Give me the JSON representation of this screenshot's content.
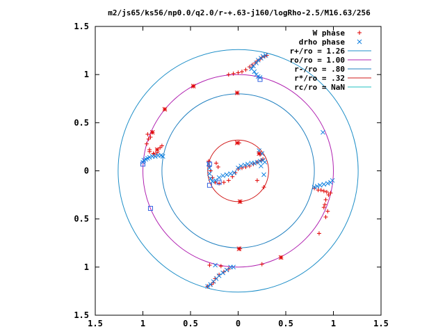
{
  "chart_data": {
    "type": "scatter",
    "title": "m2/js65/ks56/np0.0/q2.0/r-+.63-j160/logRho-2.5/M16.63/256",
    "xlabel": "",
    "ylabel": "",
    "xlim": [
      -1.5,
      1.5
    ],
    "ylim": [
      -1.5,
      1.5
    ],
    "grid": false,
    "legend_position": "top-right",
    "x_ticks": [
      {
        "value": -1.5,
        "label": "1.5"
      },
      {
        "value": -1.0,
        "label": "1"
      },
      {
        "value": -0.5,
        "label": "0.5"
      },
      {
        "value": 0.0,
        "label": "0"
      },
      {
        "value": 0.5,
        "label": "0.5"
      },
      {
        "value": 1.0,
        "label": "1"
      },
      {
        "value": 1.5,
        "label": "1.5"
      }
    ],
    "y_ticks": [
      {
        "value": 1.5,
        "label": "1.5"
      },
      {
        "value": 1.0,
        "label": "1"
      },
      {
        "value": 0.5,
        "label": "0.5"
      },
      {
        "value": 0.0,
        "label": "0"
      },
      {
        "value": -0.5,
        "label": "0.5"
      },
      {
        "value": -1.0,
        "label": "1"
      },
      {
        "value": -1.5,
        "label": "1.5"
      }
    ],
    "circles": [
      {
        "name": "r+/ro = 1.26",
        "radius": 1.26,
        "color": "#1f8fc8"
      },
      {
        "name": "ro/ro = 1.00",
        "radius": 1.0,
        "color": "#b020b0"
      },
      {
        "name": "r-/ro = .80",
        "radius": 0.8,
        "color": "#2080c0"
      },
      {
        "name": "r*/ro = .32",
        "radius": 0.32,
        "color": "#d01818"
      },
      {
        "name": "rc/ro = NaN",
        "radius": null,
        "color": "#20c0c0"
      }
    ],
    "series": [
      {
        "name": "W phase",
        "marker": "plus",
        "color": "#e00000",
        "points": [
          [
            -0.89,
            0.18
          ],
          [
            -0.93,
            0.22
          ],
          [
            -0.96,
            0.28
          ],
          [
            -0.94,
            0.33
          ],
          [
            -0.92,
            0.35
          ],
          [
            -0.95,
            0.38
          ],
          [
            -0.9,
            0.4
          ],
          [
            -0.93,
            0.2
          ],
          [
            -0.88,
            0.17
          ],
          [
            -0.85,
            0.19
          ],
          [
            -0.82,
            0.24
          ],
          [
            -0.8,
            0.26
          ],
          [
            -0.77,
            0.64
          ],
          [
            -0.47,
            0.88
          ],
          [
            -0.1,
            1.0
          ],
          [
            -0.05,
            1.01
          ],
          [
            0.0,
            1.02
          ],
          [
            0.04,
            1.03
          ],
          [
            0.08,
            1.05
          ],
          [
            0.12,
            1.08
          ],
          [
            0.15,
            1.1
          ],
          [
            0.18,
            1.12
          ],
          [
            0.2,
            1.14
          ],
          [
            0.23,
            1.16
          ],
          [
            0.25,
            1.18
          ],
          [
            0.28,
            1.19
          ],
          [
            0.3,
            1.2
          ],
          [
            -0.01,
            0.81
          ],
          [
            -0.31,
            0.1
          ],
          [
            -0.3,
            0.05
          ],
          [
            -0.29,
            0.0
          ],
          [
            -0.27,
            -0.07
          ],
          [
            -0.24,
            -0.12
          ],
          [
            -0.2,
            -0.13
          ],
          [
            -0.15,
            -0.12
          ],
          [
            -0.1,
            -0.1
          ],
          [
            -0.06,
            -0.06
          ],
          [
            -0.03,
            -0.02
          ],
          [
            0.0,
            0.02
          ],
          [
            0.04,
            0.03
          ],
          [
            0.08,
            0.04
          ],
          [
            0.12,
            0.05
          ],
          [
            0.16,
            0.07
          ],
          [
            0.2,
            0.09
          ],
          [
            0.24,
            0.11
          ],
          [
            0.26,
            0.12
          ],
          [
            -0.23,
            0.08
          ],
          [
            -0.21,
            0.04
          ],
          [
            0.01,
            0.29
          ],
          [
            0.23,
            0.17
          ],
          [
            0.02,
            -0.32
          ],
          [
            0.27,
            -0.17
          ],
          [
            0.2,
            -0.1
          ],
          [
            0.8,
            -0.18
          ],
          [
            0.84,
            -0.2
          ],
          [
            0.87,
            -0.2
          ],
          [
            0.9,
            -0.21
          ],
          [
            0.93,
            -0.22
          ],
          [
            0.95,
            -0.25
          ],
          [
            0.97,
            -0.23
          ],
          [
            0.92,
            -0.3
          ],
          [
            0.91,
            -0.35
          ],
          [
            0.9,
            -0.38
          ],
          [
            0.94,
            -0.42
          ],
          [
            0.92,
            -0.48
          ],
          [
            0.85,
            -0.65
          ],
          [
            0.45,
            -0.9
          ],
          [
            0.02,
            -0.81
          ],
          [
            -0.1,
            -1.02
          ],
          [
            -0.15,
            -1.05
          ],
          [
            -0.2,
            -1.08
          ],
          [
            -0.24,
            -1.12
          ],
          [
            -0.26,
            -1.16
          ],
          [
            -0.28,
            -1.18
          ],
          [
            -0.32,
            -1.2
          ],
          [
            -0.3,
            -0.98
          ],
          [
            -0.18,
            -0.99
          ],
          [
            0.25,
            -0.97
          ]
        ]
      },
      {
        "name": "drho phase",
        "marker": "cross",
        "color": "#1080e0",
        "points": [
          [
            -1.0,
            0.09
          ],
          [
            -0.99,
            0.11
          ],
          [
            -0.97,
            0.12
          ],
          [
            -0.95,
            0.13
          ],
          [
            -0.93,
            0.14
          ],
          [
            -0.9,
            0.15
          ],
          [
            -0.87,
            0.15
          ],
          [
            -0.84,
            0.16
          ],
          [
            -0.81,
            0.16
          ],
          [
            -0.79,
            0.15
          ],
          [
            0.14,
            1.06
          ],
          [
            0.16,
            1.09
          ],
          [
            0.19,
            1.12
          ],
          [
            0.21,
            1.15
          ],
          [
            0.24,
            1.17
          ],
          [
            0.26,
            1.19
          ],
          [
            0.29,
            1.2
          ],
          [
            0.17,
            1.03
          ],
          [
            0.19,
            1.0
          ],
          [
            0.21,
            0.98
          ],
          [
            0.23,
            0.97
          ],
          [
            0.89,
            0.4
          ],
          [
            -0.31,
            0.07
          ],
          [
            -0.3,
            0.03
          ],
          [
            -0.3,
            -0.03
          ],
          [
            -0.29,
            -0.08
          ],
          [
            -0.27,
            -0.11
          ],
          [
            -0.24,
            -0.1
          ],
          [
            -0.2,
            -0.07
          ],
          [
            -0.16,
            -0.05
          ],
          [
            -0.12,
            -0.04
          ],
          [
            -0.08,
            -0.03
          ],
          [
            -0.04,
            -0.02
          ],
          [
            0.0,
            0.03
          ],
          [
            0.03,
            0.05
          ],
          [
            0.07,
            0.06
          ],
          [
            0.1,
            0.07
          ],
          [
            0.14,
            0.08
          ],
          [
            0.17,
            0.08
          ],
          [
            0.2,
            0.09
          ],
          [
            0.23,
            0.1
          ],
          [
            0.26,
            0.11
          ],
          [
            0.28,
            0.09
          ],
          [
            0.25,
            0.18
          ],
          [
            0.22,
            0.21
          ],
          [
            0.24,
            0.05
          ],
          [
            0.27,
            -0.04
          ],
          [
            0.8,
            -0.17
          ],
          [
            0.83,
            -0.16
          ],
          [
            0.86,
            -0.15
          ],
          [
            0.9,
            -0.14
          ],
          [
            0.94,
            -0.13
          ],
          [
            0.97,
            -0.12
          ],
          [
            0.99,
            -0.1
          ],
          [
            -0.08,
            -1.0
          ],
          [
            -0.12,
            -1.03
          ],
          [
            -0.16,
            -1.06
          ],
          [
            -0.2,
            -1.09
          ],
          [
            -0.23,
            -1.12
          ],
          [
            -0.26,
            -1.15
          ],
          [
            -0.29,
            -1.18
          ],
          [
            -0.32,
            -1.2
          ],
          [
            -0.24,
            -0.98
          ],
          [
            -0.05,
            -1.0
          ]
        ]
      },
      {
        "name": "",
        "marker": "open-square",
        "color": "#3060e0",
        "points": [
          [
            -1.0,
            0.07
          ],
          [
            -0.92,
            -0.39
          ],
          [
            0.23,
            0.95
          ],
          [
            -0.3,
            -0.15
          ],
          [
            -0.3,
            0.07
          ],
          [
            -0.2,
            -0.12
          ]
        ]
      },
      {
        "name": "",
        "marker": "star",
        "color": "#e00000",
        "points": [
          [
            -0.9,
            0.4
          ],
          [
            -0.85,
            0.22
          ],
          [
            -0.77,
            0.64
          ],
          [
            -0.47,
            0.88
          ],
          [
            -0.01,
            0.81
          ],
          [
            -0.01,
            0.29
          ],
          [
            0.22,
            0.18
          ],
          [
            0.02,
            -0.32
          ],
          [
            0.01,
            -0.81
          ],
          [
            0.45,
            -0.9
          ]
        ]
      }
    ]
  }
}
